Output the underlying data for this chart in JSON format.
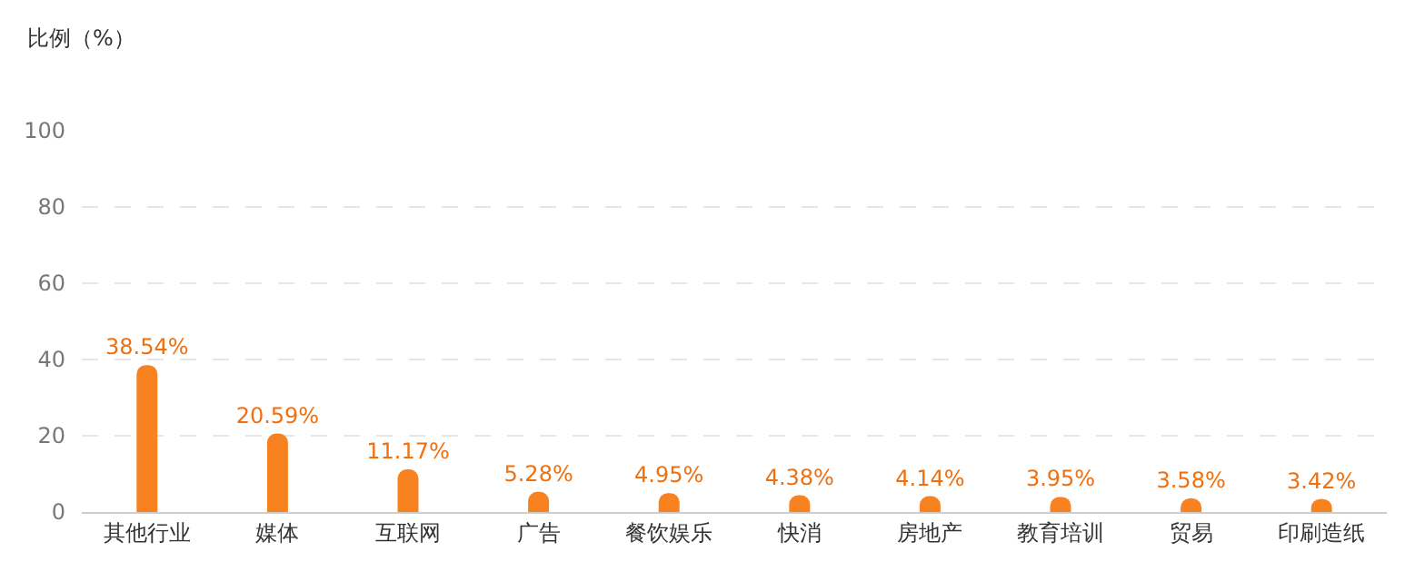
{
  "chart_data": {
    "type": "bar",
    "ylabel": "比例（%）",
    "categories": [
      "其他行业",
      "媒体",
      "互联网",
      "广告",
      "餐饮娱乐",
      "快消",
      "房地产",
      "教育培训",
      "贸易",
      "印刷造纸"
    ],
    "values": [
      38.54,
      20.59,
      11.17,
      5.28,
      4.95,
      4.38,
      4.14,
      3.95,
      3.58,
      3.42
    ],
    "value_labels": [
      "38.54%",
      "20.59%",
      "11.17%",
      "5.28%",
      "4.95%",
      "4.38%",
      "4.14%",
      "3.95%",
      "3.58%",
      "3.42%"
    ],
    "color": "#f7821f",
    "ylim": [
      0,
      100
    ],
    "yticks": [
      0,
      20,
      40,
      60,
      80,
      100
    ],
    "grid": "y"
  }
}
